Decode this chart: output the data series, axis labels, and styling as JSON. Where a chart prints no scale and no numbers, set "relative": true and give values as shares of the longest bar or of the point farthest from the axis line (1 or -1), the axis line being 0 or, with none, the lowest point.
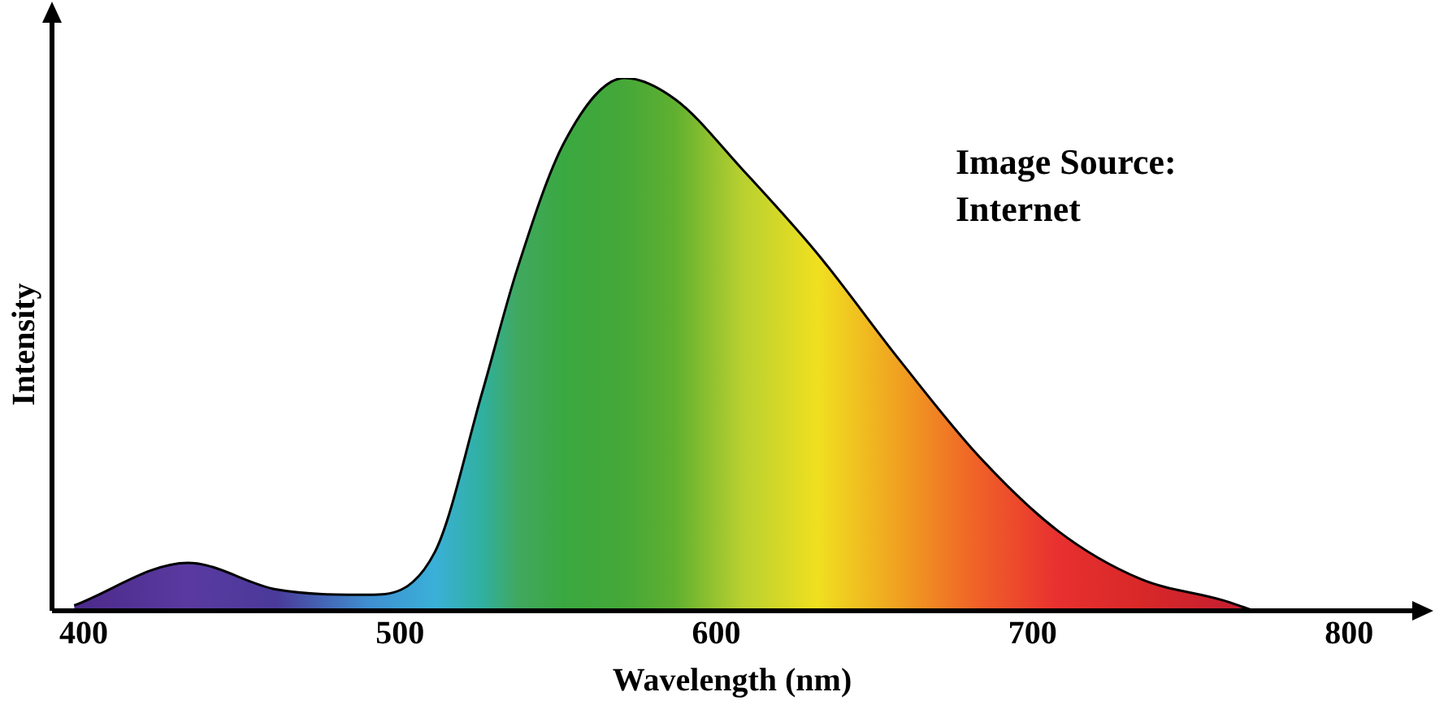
{
  "chart_data": {
    "type": "area",
    "relative": true,
    "xlabel": "Wavelength (nm)",
    "ylabel": "Intensity",
    "xlim": [
      390,
      820
    ],
    "xticks": [
      400,
      500,
      600,
      700,
      800
    ],
    "grid": false,
    "legend": false,
    "annotations": [
      "Image Source: Internet"
    ],
    "series": [
      {
        "x": [
          397,
          433,
          461,
          490,
          511,
          526,
          537,
          552,
          571,
          587,
          608,
          632,
          658,
          683,
          708,
          734,
          760,
          770
        ],
        "values": [
          0.01,
          0.09,
          0.04,
          0.03,
          0.11,
          0.41,
          0.64,
          0.88,
          1,
          0.96,
          0.83,
          0.67,
          0.47,
          0.29,
          0.15,
          0.06,
          0.02,
          0
        ],
        "color": "#000000",
        "colors": [
          "#4b2a8a",
          "#5a3aa0",
          "#4a3a9a",
          "#3f8fd0",
          "#3ab0d8",
          "#30b0a0",
          "#40a860",
          "#3aa840",
          "#45a838",
          "#60b030",
          "#b8d030",
          "#f0e020",
          "#f0a020",
          "#f06028",
          "#e83030",
          "#d82828",
          "#c82030",
          "#c02030"
        ]
      }
    ]
  }
}
